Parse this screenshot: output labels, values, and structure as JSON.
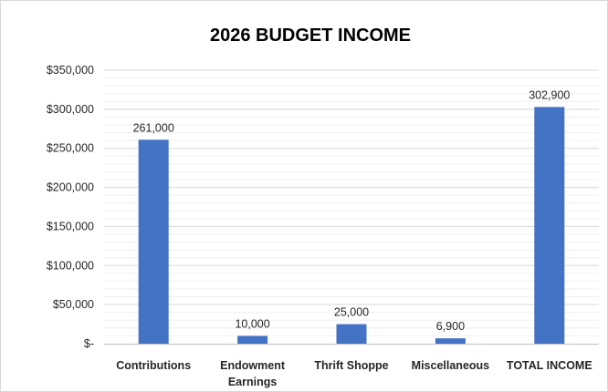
{
  "chart_data": {
    "type": "bar",
    "title": "2026 BUDGET INCOME",
    "xlabel": "",
    "ylabel": "",
    "categories": [
      [
        "Contributions"
      ],
      [
        "Endowment",
        "Earnings"
      ],
      [
        "Thrift Shoppe"
      ],
      [
        "Miscellaneous"
      ],
      [
        "TOTAL INCOME"
      ]
    ],
    "values": [
      261000,
      10000,
      25000,
      6900,
      302900
    ],
    "data_labels": [
      "261,000",
      "10,000",
      "25,000",
      "6,900",
      "302,900"
    ],
    "ylim": [
      0,
      350000
    ],
    "yticks": [
      0,
      50000,
      100000,
      150000,
      200000,
      250000,
      300000,
      350000
    ],
    "ytick_labels": [
      "$-",
      "$50,000",
      "$100,000",
      "$150,000",
      "$200,000",
      "$250,000",
      "$300,000",
      "$350,000"
    ],
    "grid": true,
    "minor_grid": true,
    "legend": "none",
    "colors": {
      "bar": "#4472C4",
      "grid": "#d9d9d9",
      "minor_grid": "#efefef",
      "text": "#262626"
    }
  }
}
